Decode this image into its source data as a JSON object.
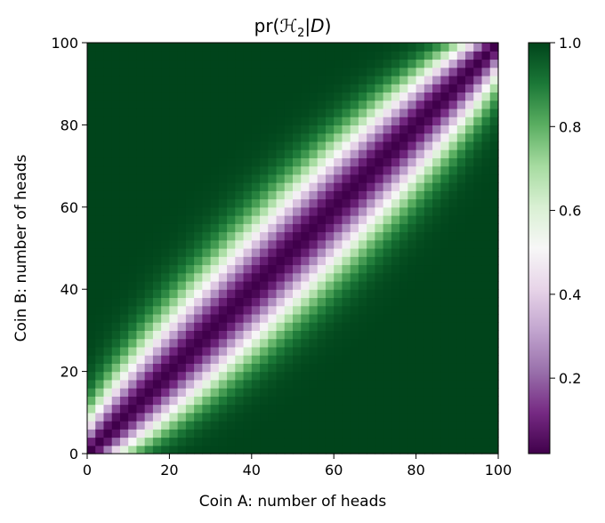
{
  "chart_data": {
    "type": "heatmap",
    "title_prefix": "pr(",
    "title_script": "ℋ",
    "title_sub": "2",
    "title_mid": "|",
    "title_d": "D",
    "title_suffix": ")",
    "xlabel": "Coin A: number of heads",
    "ylabel": "Coin B: number of heads",
    "xlim": [
      0,
      100
    ],
    "ylim": [
      0,
      100
    ],
    "xticks": [
      "0",
      "20",
      "40",
      "60",
      "80",
      "100"
    ],
    "yticks": [
      "0",
      "20",
      "40",
      "60",
      "80",
      "100"
    ],
    "grid_resolution": 50,
    "band_profile": {
      "description_of_values": "probability as function of |A-B|; min near diagonal, 1.0 far from it",
      "min_value": 0.02,
      "max_value": 1.0
    },
    "colorbar": {
      "colormap": "PRGn",
      "range": [
        0.02,
        1.0
      ],
      "ticks": [
        "0.2",
        "0.4",
        "0.6",
        "0.8",
        "1.0"
      ],
      "tick_values": [
        0.2,
        0.4,
        0.6,
        0.8,
        1.0
      ]
    }
  }
}
